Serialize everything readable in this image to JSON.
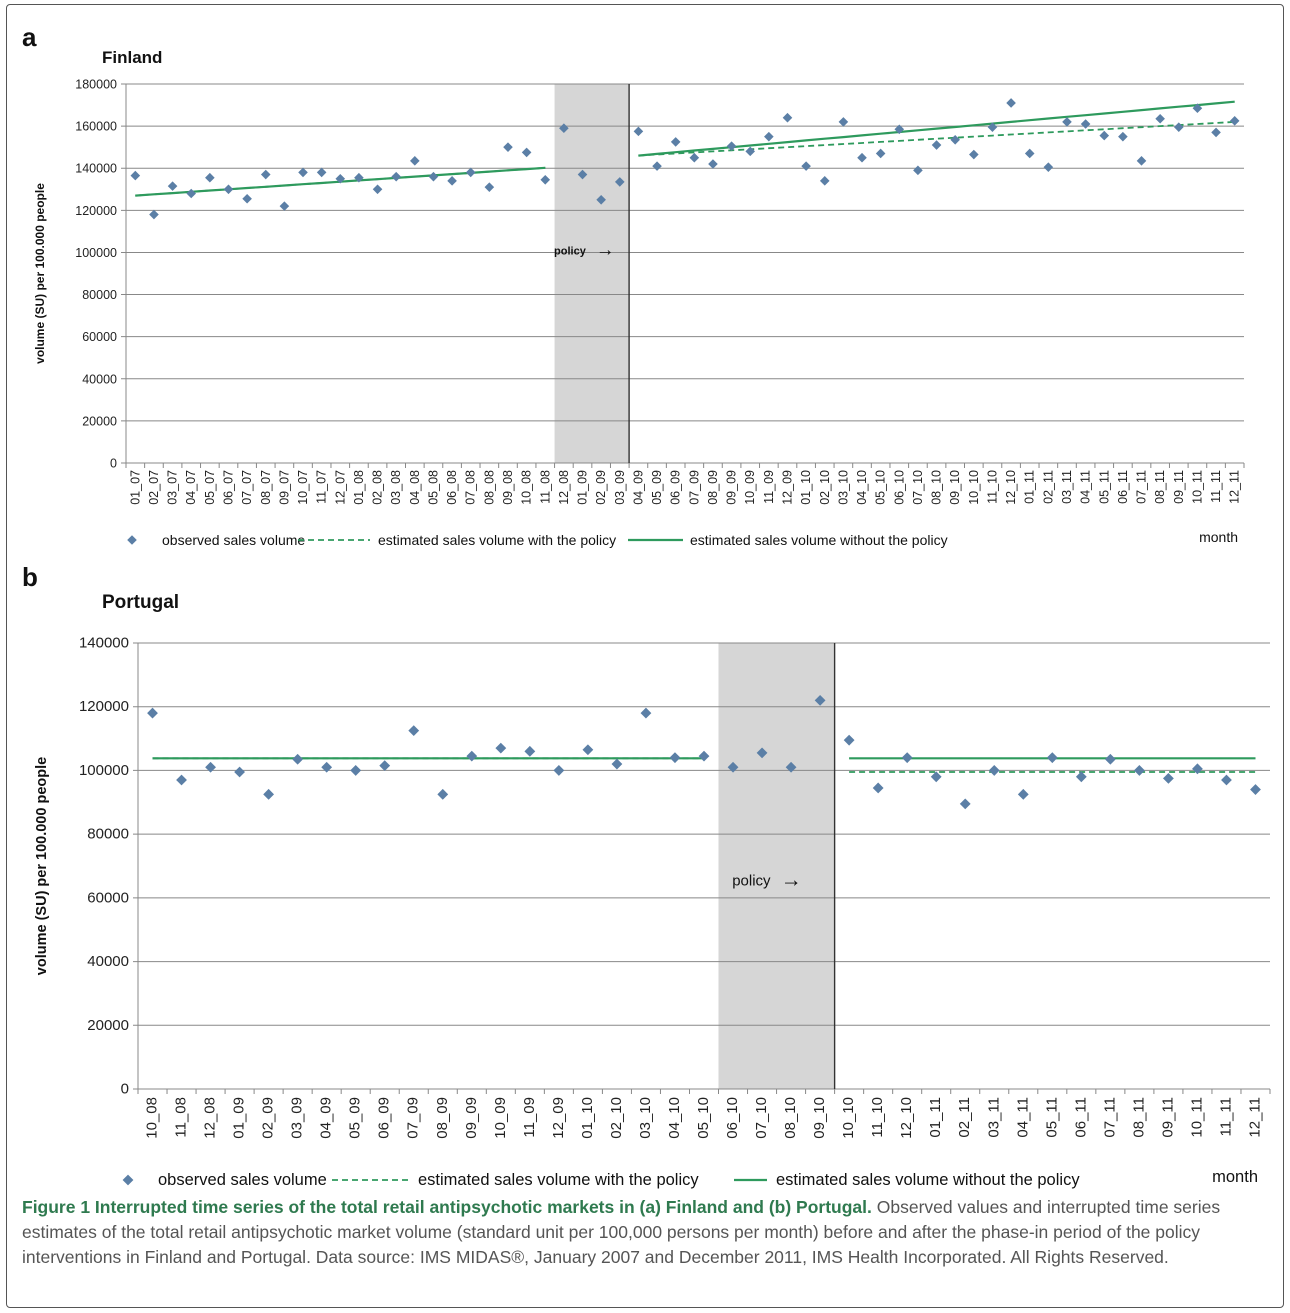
{
  "colors": {
    "marker": "#5b7fa6",
    "trend": "#2e9a5d",
    "shade": "#d6d6d6",
    "grid": "#888888",
    "caption_title": "#2f7a4f"
  },
  "legend": {
    "observed": "observed sales volume",
    "with_policy": "estimated sales volume with the policy",
    "without_policy": "estimated sales volume without the policy",
    "month": "month"
  },
  "caption": {
    "title": "Figure 1 Interrupted time series of the total retail antipsychotic markets in (a) Finland and (b) Portugal.",
    "body": " Observed values and interrupted time series estimates of the total retail antipsychotic market volume (standard unit per 100,000 persons per month) before and after the phase-in period of the policy interventions in Finland and Portugal. Data source: IMS MIDAS®, January 2007 and December 2011, IMS Health Incorporated. All Rights Reserved."
  },
  "chart_data": [
    {
      "panel": "a",
      "type": "scatter",
      "title": "Finland",
      "ylabel": "volume (SU) per 100.000 people",
      "xlabel": "month",
      "ylim": [
        0,
        180000
      ],
      "yticks": [
        0,
        20000,
        40000,
        60000,
        80000,
        100000,
        120000,
        140000,
        160000,
        180000
      ],
      "grid": true,
      "policy_label": "policy",
      "policy_period": [
        "12_08",
        "03_09"
      ],
      "categories": [
        "01_07",
        "02_07",
        "03_07",
        "04_07",
        "05_07",
        "06_07",
        "07_07",
        "08_07",
        "09_07",
        "10_07",
        "11_07",
        "12_07",
        "01_08",
        "02_08",
        "03_08",
        "04_08",
        "05_08",
        "06_08",
        "07_08",
        "08_08",
        "09_08",
        "10_08",
        "11_08",
        "12_08",
        "01_09",
        "02_09",
        "03_09",
        "04_09",
        "05_09",
        "06_09",
        "07_09",
        "08_09",
        "09_09",
        "10_09",
        "11_09",
        "12_09",
        "01_10",
        "02_10",
        "03_10",
        "04_10",
        "05_10",
        "06_10",
        "07_10",
        "08_10",
        "09_10",
        "10_10",
        "11_10",
        "12_10",
        "01_11",
        "02_11",
        "03_11",
        "04_11",
        "05_11",
        "06_11",
        "07_11",
        "08_11",
        "09_11",
        "10_11",
        "11_11",
        "12_11"
      ],
      "series": [
        {
          "name": "observed sales volume",
          "kind": "markers",
          "values": [
            136500,
            118000,
            131500,
            128000,
            135500,
            130000,
            125500,
            137000,
            122000,
            138000,
            138000,
            135000,
            135500,
            130000,
            136000,
            143500,
            136000,
            134000,
            138000,
            131000,
            150000,
            147500,
            134500,
            159000,
            137000,
            125000,
            133500,
            157500,
            141000,
            152500,
            145000,
            142000,
            150500,
            148000,
            155000,
            164000,
            141000,
            134000,
            162000,
            145000,
            147000,
            158500,
            139000,
            151000,
            153500,
            146500,
            159500,
            171000,
            147000,
            140500,
            162000,
            161000,
            155500,
            155000,
            143500,
            163500,
            159500,
            168500,
            157000,
            162500
          ]
        },
        {
          "name": "estimated sales volume with the policy",
          "kind": "dashed",
          "values": [
            127000,
            127600,
            128200,
            128800,
            129400,
            130000,
            130600,
            131200,
            131800,
            132400,
            133000,
            133600,
            134200,
            134800,
            135400,
            136000,
            136600,
            137200,
            137800,
            138400,
            139000,
            139600,
            140200,
            141000,
            141500,
            142000,
            142800,
            146000,
            146500,
            147000,
            147500,
            148000,
            148500,
            149000,
            149500,
            150000,
            150500,
            151000,
            151500,
            152000,
            152500,
            153000,
            153500,
            154000,
            154500,
            155000,
            155500,
            156000,
            156500,
            157000,
            157500,
            158000,
            158500,
            159000,
            159500,
            160000,
            160500,
            161000,
            161500,
            162000
          ]
        },
        {
          "name": "estimated sales volume without the policy",
          "kind": "solid",
          "values": [
            127000,
            127600,
            128200,
            128800,
            129400,
            130000,
            130600,
            131200,
            131800,
            132400,
            133000,
            133600,
            134200,
            134800,
            135400,
            136000,
            136600,
            137200,
            137800,
            138400,
            139000,
            139600,
            140200,
            141000,
            141500,
            142000,
            142800,
            146000,
            146800,
            147600,
            148400,
            149200,
            150000,
            150800,
            151600,
            152400,
            153200,
            154000,
            154800,
            155600,
            156400,
            157200,
            158000,
            158800,
            159600,
            160400,
            161200,
            162000,
            162800,
            163600,
            164400,
            165200,
            166000,
            166800,
            167600,
            168400,
            169200,
            170000,
            170800,
            171600
          ]
        }
      ]
    },
    {
      "panel": "b",
      "type": "scatter",
      "title": "Portugal",
      "ylabel": "volume (SU) per 100.000 people",
      "xlabel": "month",
      "ylim": [
        0,
        140000
      ],
      "yticks": [
        0,
        20000,
        40000,
        60000,
        80000,
        100000,
        120000,
        140000
      ],
      "grid": true,
      "policy_label": "policy",
      "policy_period": [
        "06_10",
        "09_10"
      ],
      "categories": [
        "10_08",
        "11_08",
        "12_08",
        "01_09",
        "02_09",
        "03_09",
        "04_09",
        "05_09",
        "06_09",
        "07_09",
        "08_09",
        "09_09",
        "10_09",
        "11_09",
        "12_09",
        "01_10",
        "02_10",
        "03_10",
        "04_10",
        "05_10",
        "06_10",
        "07_10",
        "08_10",
        "09_10",
        "10_10",
        "11_10",
        "12_10",
        "01_11",
        "02_11",
        "03_11",
        "04_11",
        "05_11",
        "06_11",
        "07_11",
        "08_11",
        "09_11",
        "10_11",
        "11_11",
        "12_11"
      ],
      "series": [
        {
          "name": "observed sales volume",
          "kind": "markers",
          "values": [
            118000,
            97000,
            101000,
            99500,
            92500,
            103500,
            101000,
            100000,
            101500,
            112500,
            92500,
            104500,
            107000,
            106000,
            100000,
            106500,
            102000,
            118000,
            104000,
            104500,
            101000,
            105500,
            101000,
            122000,
            109500,
            94500,
            104000,
            98000,
            89500,
            100000,
            92500,
            104000,
            98000,
            103500,
            100000,
            97500,
            100500,
            97000,
            94000
          ]
        },
        {
          "name": "estimated sales volume with the policy",
          "kind": "dashed",
          "values": [
            103800,
            103800,
            103800,
            103800,
            103800,
            103800,
            103800,
            103800,
            103800,
            103800,
            103800,
            103800,
            103800,
            103800,
            103800,
            103800,
            103800,
            103800,
            103800,
            103800,
            103800,
            103800,
            103800,
            103800,
            99500,
            99500,
            99500,
            99500,
            99500,
            99500,
            99500,
            99500,
            99500,
            99500,
            99500,
            99500,
            99500,
            99500,
            99500
          ]
        },
        {
          "name": "estimated sales volume without the policy",
          "kind": "solid",
          "values": [
            103800,
            103800,
            103800,
            103800,
            103800,
            103800,
            103800,
            103800,
            103800,
            103800,
            103800,
            103800,
            103800,
            103800,
            103800,
            103800,
            103800,
            103800,
            103800,
            103800,
            103800,
            103800,
            103800,
            103800,
            103800,
            103800,
            103800,
            103800,
            103800,
            103800,
            103800,
            103800,
            103800,
            103800,
            103800,
            103800,
            103800,
            103800,
            103800
          ]
        }
      ]
    }
  ]
}
